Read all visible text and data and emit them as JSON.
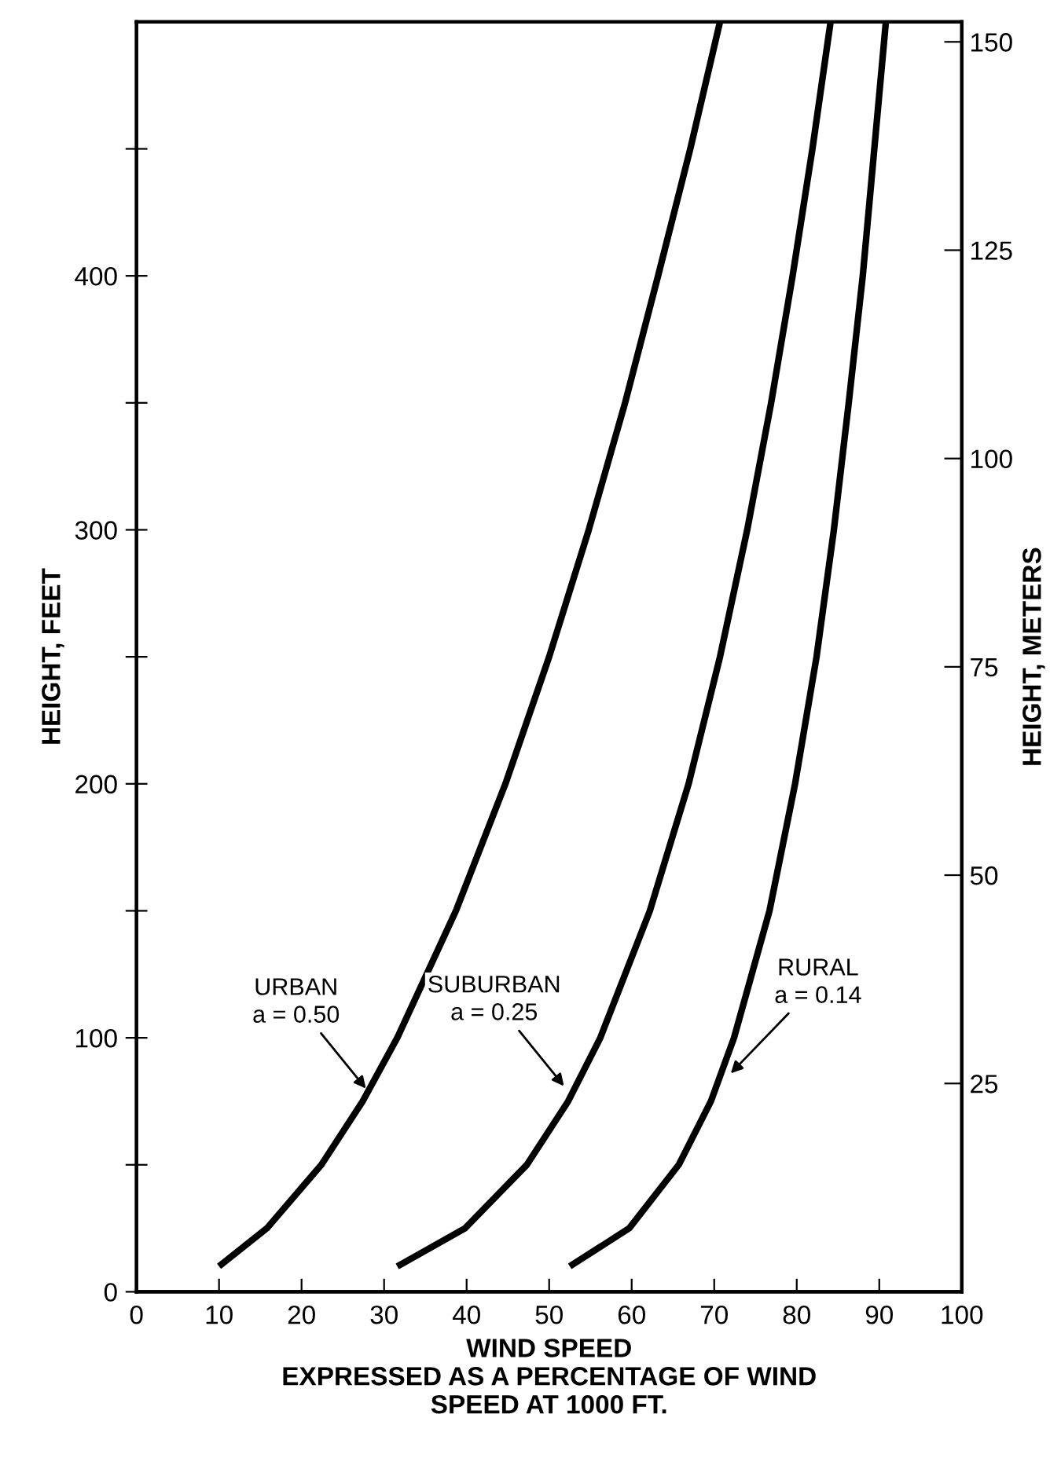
{
  "chart_data": {
    "type": "line",
    "xlabel": "WIND SPEED\nEXPRESSED AS A PERCENTAGE OF WIND\nSPEED AT 1000 FT.",
    "ylabel": "HEIGHT, FEET",
    "y2label": "HEIGHT, METERS",
    "series": [
      {
        "color": "#000000",
        "x": [
          10,
          15.8,
          22.4,
          27.4,
          31.6,
          38.7,
          44.7,
          50,
          54.8,
          59.2,
          63.2,
          67.1,
          70.7
        ],
        "values": [
          10,
          25,
          50,
          75,
          100,
          150,
          200,
          250,
          300,
          350,
          400,
          450,
          500
        ]
      },
      {
        "color": "#000000",
        "x": [
          31.6,
          39.8,
          47.3,
          52.3,
          56.2,
          62.2,
          66.9,
          70.7,
          74.0,
          76.9,
          79.5,
          81.9,
          84.1
        ],
        "values": [
          10,
          25,
          50,
          75,
          100,
          150,
          200,
          250,
          300,
          350,
          400,
          450,
          500
        ]
      },
      {
        "color": "#000000",
        "x": [
          52.5,
          59.7,
          65.7,
          69.6,
          72.4,
          76.7,
          79.8,
          82.4,
          84.5,
          86.3,
          88.0,
          89.4,
          90.8
        ],
        "values": [
          10,
          25,
          50,
          75,
          100,
          150,
          200,
          250,
          300,
          350,
          400,
          450,
          500
        ]
      }
    ],
    "annotations": [
      {
        "text": "URBAN\na = 0.50",
        "x": 27.8,
        "y": 80
      },
      {
        "text": "SUBURBAN\na = 0.25",
        "x": 51.8,
        "y": 81
      },
      {
        "text": "RURAL\na = 0.14",
        "x": 72,
        "y": 86
      }
    ],
    "xlim": [
      0,
      100
    ],
    "xticks": [
      0,
      10,
      20,
      30,
      40,
      50,
      60,
      70,
      80,
      90,
      100
    ],
    "ylim": [
      0,
      500
    ],
    "yticks": [
      0,
      {
        "value": 50,
        "label": null
      },
      100,
      {
        "value": 150,
        "label": null
      },
      200,
      {
        "value": 250,
        "label": null
      },
      300,
      {
        "value": 350,
        "label": null
      },
      400,
      {
        "value": 450,
        "label": null
      }
    ],
    "y2lim": [
      0,
      152.4
    ],
    "y2ticks": [
      25,
      50,
      75,
      100,
      125,
      150
    ],
    "grid": false,
    "marker": "none",
    "line_style": "solid"
  }
}
